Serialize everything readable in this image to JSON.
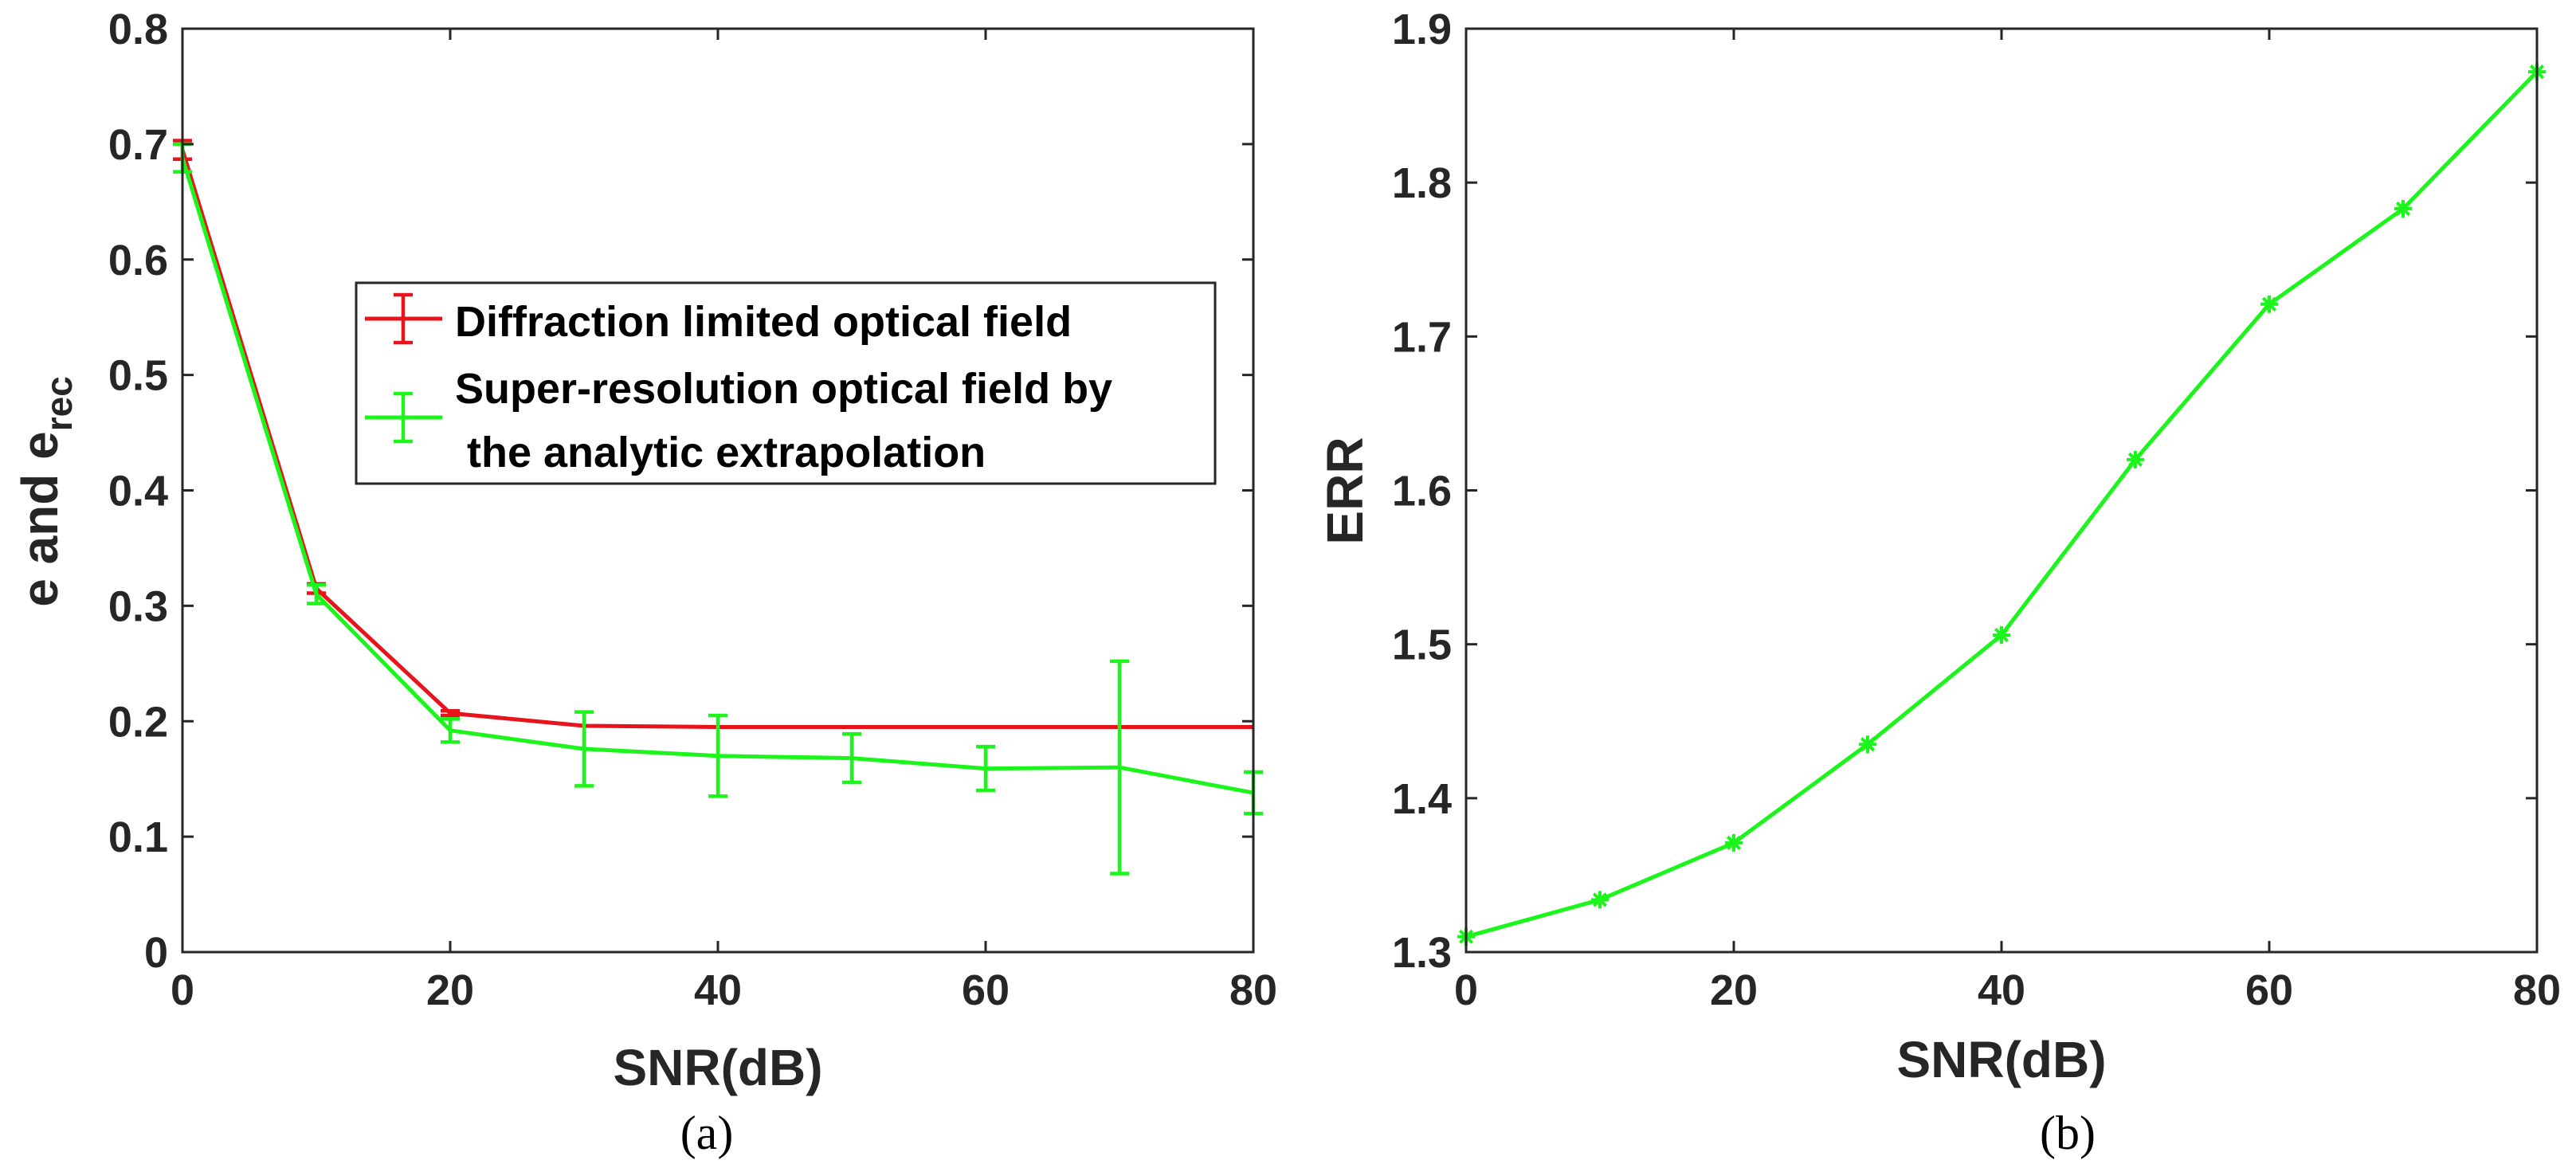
{
  "colors": {
    "diffraction": "#e8141c",
    "superres": "#1cf51c",
    "axis": "#262626",
    "frame": "#262626"
  },
  "chart_data": [
    {
      "id": "a",
      "type": "line",
      "caption": "(a)",
      "xlabel": "SNR(dB)",
      "ylabel_main": "e and e",
      "ylabel_sub": "rec",
      "xlim": [
        0,
        80
      ],
      "ylim": [
        0,
        0.8
      ],
      "xticks": [
        0,
        20,
        40,
        60,
        80
      ],
      "xtick_labels": [
        "0",
        "20",
        "40",
        "60",
        "80"
      ],
      "yticks": [
        0,
        0.1,
        0.2,
        0.3,
        0.4,
        0.5,
        0.6,
        0.7,
        0.8
      ],
      "ytick_labels": [
        "0",
        "0.1",
        "0.2",
        "0.3",
        "0.4",
        "0.5",
        "0.6",
        "0.7",
        "0.8"
      ],
      "x": [
        0,
        10,
        20,
        30,
        40,
        50,
        60,
        70,
        80
      ],
      "legend": {
        "position": "upper-right-center",
        "entries": [
          {
            "lines": [
              "Diffraction limited optical field"
            ]
          },
          {
            "lines": [
              "Super-resolution optical field by",
              " the analytic extrapolation"
            ]
          }
        ]
      },
      "series": [
        {
          "name": "Diffraction limited optical field",
          "color_key": "diffraction",
          "values": [
            0.695,
            0.315,
            0.207,
            0.196,
            0.195,
            0.195,
            0.195,
            0.195,
            0.195
          ],
          "err": [
            0.008,
            0.004,
            0.002,
            0.0,
            0.0,
            0.0,
            0.0,
            0.0,
            0.0
          ]
        },
        {
          "name": "Super-resolution optical field by the analytic extrapolation",
          "color_key": "superres",
          "values": [
            0.688,
            0.31,
            0.192,
            0.176,
            0.17,
            0.168,
            0.159,
            0.16,
            0.138
          ],
          "err": [
            0.012,
            0.008,
            0.01,
            0.032,
            0.035,
            0.021,
            0.019,
            0.092,
            0.018
          ]
        }
      ]
    },
    {
      "id": "b",
      "type": "line",
      "caption": "(b)",
      "xlabel": "SNR(dB)",
      "ylabel": "ERR",
      "xlim": [
        0,
        80
      ],
      "ylim": [
        1.3,
        1.9
      ],
      "xticks": [
        0,
        20,
        40,
        60,
        80
      ],
      "xtick_labels": [
        "0",
        "20",
        "40",
        "60",
        "80"
      ],
      "yticks": [
        1.3,
        1.4,
        1.5,
        1.6,
        1.7,
        1.8,
        1.9
      ],
      "ytick_labels": [
        "1.3",
        "1.4",
        "1.5",
        "1.6",
        "1.7",
        "1.8",
        "1.9"
      ],
      "x": [
        0,
        10,
        20,
        30,
        40,
        50,
        60,
        70,
        80
      ],
      "series": [
        {
          "name": "ERR",
          "color_key": "superres",
          "marker": "asterisk",
          "values": [
            1.31,
            1.334,
            1.371,
            1.435,
            1.506,
            1.62,
            1.721,
            1.783,
            1.872
          ]
        }
      ]
    }
  ]
}
